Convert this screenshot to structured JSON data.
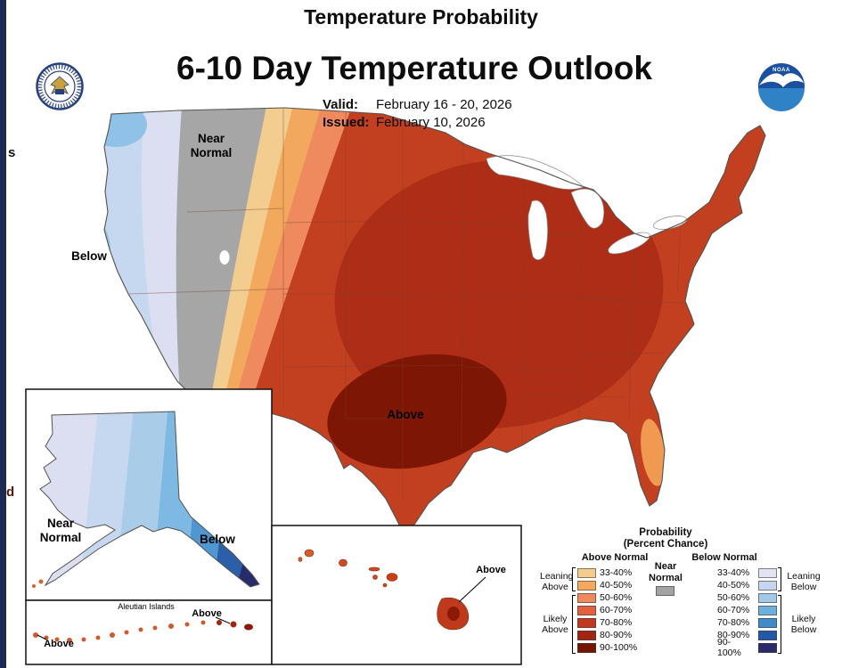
{
  "header": {
    "supertitle": "Temperature Probability",
    "title": "6-10 Day Temperature Outlook",
    "valid_label": "Valid:",
    "valid_value": "February 16 - 20, 2026",
    "issued_label": "Issued:",
    "issued_value": "February 10, 2026",
    "noaa_text": "NOAA"
  },
  "map": {
    "labels": {
      "near_normal_line1": "Near",
      "near_normal_line2": "Normal",
      "below": "Below",
      "above": "Above"
    },
    "alaska": {
      "near_normal_line1": "Near",
      "near_normal_line2": "Normal",
      "below": "Below"
    },
    "aleutians": {
      "title": "Aleutian Islands",
      "above_left": "Above",
      "above_right": "Above"
    },
    "hawaii": {
      "above": "Above"
    }
  },
  "legend": {
    "title": "Probability",
    "subtitle": "(Percent Chance)",
    "above_header": "Above Normal",
    "below_header": "Below Normal",
    "near_normal_label": "Near\nNormal",
    "leaning_above": "Leaning\nAbove",
    "likely_above": "Likely\nAbove",
    "leaning_below": "Leaning\nBelow",
    "likely_below": "Likely\nBelow",
    "ranges": [
      "33-40%",
      "40-50%",
      "50-60%",
      "60-70%",
      "70-80%",
      "80-90%",
      "90-100%"
    ],
    "above_colors": [
      "#f3cd8f",
      "#f2a95e",
      "#ee8a5e",
      "#e1603f",
      "#c13a20",
      "#a02513",
      "#741402"
    ],
    "below_colors": [
      "#e2e4f2",
      "#c6d6ee",
      "#a3c8e8",
      "#6fafdc",
      "#3f8cc8",
      "#2358a6",
      "#2b2a6b"
    ],
    "near_normal_color": "#a3a3a3",
    "map_base_above": "#c2401f",
    "map_dark_above": "#ad2d17",
    "map_darkest_above": "#7d1605"
  },
  "edge_fragments": {
    "top": "s",
    "bottom": "d"
  }
}
